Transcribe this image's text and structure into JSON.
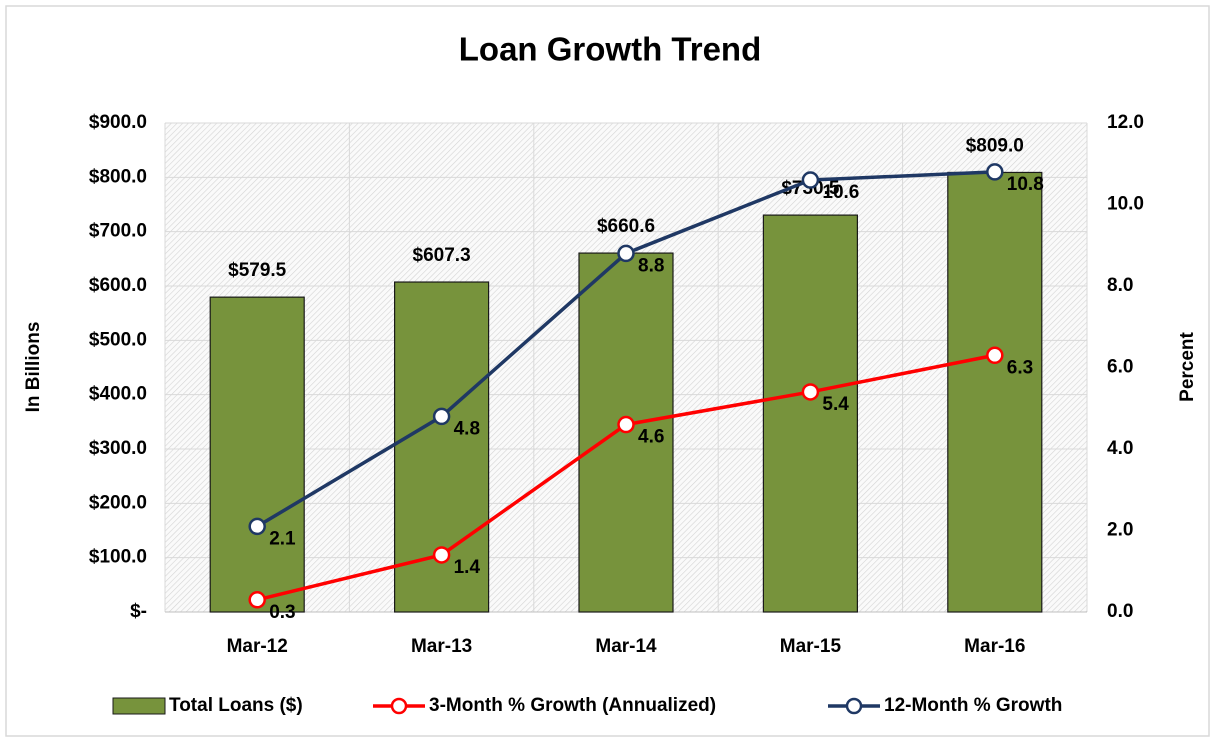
{
  "chart_data": {
    "type": "bar",
    "title": "Loan Growth Trend",
    "categories": [
      "Mar-12",
      "Mar-13",
      "Mar-14",
      "Mar-15",
      "Mar-16"
    ],
    "y_label": "In Billions",
    "y2_label": "Percent",
    "ylim": [
      0,
      900
    ],
    "yticks": [
      {
        "value": 0,
        "label": "$-"
      },
      {
        "value": 100,
        "label": "$100.0"
      },
      {
        "value": 200,
        "label": "$200.0"
      },
      {
        "value": 300,
        "label": "$300.0"
      },
      {
        "value": 400,
        "label": "$400.0"
      },
      {
        "value": 500,
        "label": "$500.0"
      },
      {
        "value": 600,
        "label": "$600.0"
      },
      {
        "value": 700,
        "label": "$700.0"
      },
      {
        "value": 800,
        "label": "$800.0"
      },
      {
        "value": 900,
        "label": "$900.0"
      }
    ],
    "y2lim": [
      0,
      12
    ],
    "y2ticks": [
      {
        "value": 0,
        "label": "0.0"
      },
      {
        "value": 2,
        "label": "2.0"
      },
      {
        "value": 4,
        "label": "4.0"
      },
      {
        "value": 6,
        "label": "6.0"
      },
      {
        "value": 8,
        "label": "8.0"
      },
      {
        "value": 10,
        "label": "10.0"
      },
      {
        "value": 12,
        "label": "12.0"
      }
    ],
    "grid": true,
    "legend": "bottom",
    "series": [
      {
        "name": "Total Loans ($)",
        "type": "bar",
        "color": "#77933c",
        "values": [
          579.5,
          607.3,
          660.6,
          730.5,
          809.0
        ],
        "value_labels": [
          "$579.5",
          "$607.3",
          "$660.6",
          "$730.5",
          "$809.0"
        ]
      },
      {
        "name": "3-Month % Growth (Annualized)",
        "type": "line",
        "axis": "y2",
        "color": "#ff0000",
        "values": [
          0.3,
          1.4,
          4.6,
          5.4,
          6.3
        ]
      },
      {
        "name": "12-Month % Growth",
        "type": "line",
        "axis": "y2",
        "color": "#1f3864",
        "values": [
          2.1,
          4.8,
          8.8,
          10.6,
          10.8
        ]
      }
    ]
  }
}
